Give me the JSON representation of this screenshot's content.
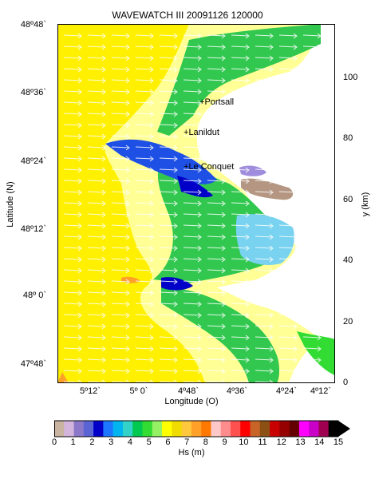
{
  "title": "WAVEWATCH III 20091126  120000",
  "x_axis": {
    "label": "Longitude (O)",
    "ticks": [
      "5º12`",
      "5º 0`",
      "4º48`",
      "4º36`",
      "4º24`",
      "4º12`"
    ]
  },
  "y_axis_left": {
    "label": "Latitude (N)",
    "ticks": [
      "48º48`",
      "48º36`",
      "48º24`",
      "48º12`",
      "48º 0`",
      "47º48`"
    ]
  },
  "y_axis_right": {
    "label": "y (km)",
    "ticks": [
      "0",
      "20",
      "40",
      "60",
      "80",
      "100"
    ]
  },
  "places": [
    "Portsall",
    "Lanildut",
    "Le Conquet"
  ],
  "colorbar": {
    "label": "Hs (m)",
    "ticks": [
      "0",
      "1",
      "2",
      "3",
      "4",
      "5",
      "6",
      "7",
      "8",
      "9",
      "10",
      "11",
      "12",
      "13",
      "14",
      "15"
    ],
    "colors": [
      "#c8b4a0",
      "#d2b4dc",
      "#8c78c8",
      "#5a64d2",
      "#0000c8",
      "#1e78ff",
      "#00b4f0",
      "#32d2c8",
      "#00c850",
      "#32dc32",
      "#96f064",
      "#ffff00",
      "#f0dc00",
      "#ffc83c",
      "#ffa028",
      "#ff7800",
      "#ffc8c8",
      "#ff8c8c",
      "#ff5050",
      "#ff0000",
      "#c86428",
      "#8c5014",
      "#c80000",
      "#960000",
      "#640000",
      "#ff00ff",
      "#c800c8",
      "#a00050",
      "#000000"
    ]
  },
  "map_colors": {
    "sea_deep": "#fff000",
    "sea_mid": "#ffff96",
    "land": "#ffffff",
    "coast_green": "#32c850",
    "coast_blue": "#1e50e6",
    "light_blue": "#78d2f0",
    "brown": "#b49682",
    "purple": "#a08cdc"
  }
}
